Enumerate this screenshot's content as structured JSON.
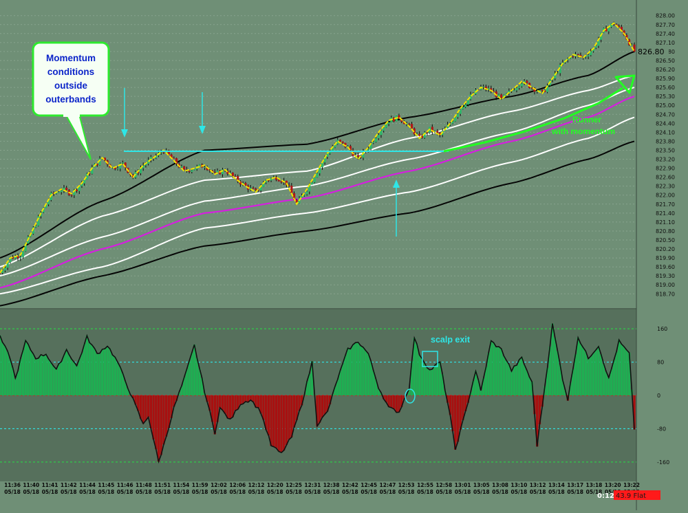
{
  "colors": {
    "background": "#6f8f76",
    "osc_background": "#56705c",
    "gridline": "#88a48e",
    "candle_up": "#2db86a",
    "candle_down": "#b01818",
    "ma_yellow": "#f3e500",
    "band_white": "#ffffff",
    "band_magenta": "#d61ee0",
    "band_black": "#050505",
    "annotation_cyan": "#2ee6e6",
    "annotation_green": "#22ff22",
    "callout_text": "#0b24c9",
    "osc_positive": "#1fae52",
    "osc_negative": "#a81010",
    "status_red": "#ff1a1a"
  },
  "annotations": {
    "callout": [
      "Momentum",
      "conditions",
      "outside",
      "outerbands"
    ],
    "runner": [
      "Runner",
      "with momentum"
    ],
    "scalp_exit": "scalp exit"
  },
  "status": {
    "timer": "0:12",
    "position": "43.9 Flat"
  },
  "chart_data": [
    {
      "type": "candlestick",
      "title": "",
      "current_price": "826.80",
      "y_ticks": [
        "828.00",
        "827.70",
        "827.40",
        "827.10",
        "826.80",
        "826.50",
        "826.20",
        "825.90",
        "825.60",
        "825.30",
        "825.00",
        "824.70",
        "824.40",
        "824.10",
        "823.80",
        "823.50",
        "823.20",
        "822.90",
        "822.60",
        "822.30",
        "822.00",
        "821.70",
        "821.40",
        "821.10",
        "820.80",
        "820.50",
        "820.20",
        "819.90",
        "819.60",
        "819.30",
        "819.00",
        "818.70"
      ],
      "ylim": [
        818.5,
        828.2
      ],
      "grid": "horizontal dotted",
      "x_ticks": [
        "11:36",
        "11:40",
        "11:41",
        "11:42",
        "11:44",
        "11:45",
        "11:46",
        "11:48",
        "11:51",
        "11:54",
        "11:59",
        "12:02",
        "12:06",
        "12:12",
        "12:20",
        "12:25",
        "12:31",
        "12:38",
        "12:42",
        "12:45",
        "12:47",
        "12:53",
        "12:55",
        "12:58",
        "13:01",
        "13:05",
        "13:08",
        "13:10",
        "13:12",
        "13:14",
        "13:17",
        "13:18",
        "13:20",
        "13:22"
      ],
      "x_dates": "05/18",
      "price_path": [
        {
          "t": 0,
          "p": 819.4
        },
        {
          "t": 2,
          "p": 819.9
        },
        {
          "t": 4,
          "p": 820.0
        },
        {
          "t": 6,
          "p": 820.7
        },
        {
          "t": 8,
          "p": 821.4
        },
        {
          "t": 10,
          "p": 822.0
        },
        {
          "t": 12,
          "p": 822.2
        },
        {
          "t": 14,
          "p": 822.05
        },
        {
          "t": 16,
          "p": 822.4
        },
        {
          "t": 18,
          "p": 822.9
        },
        {
          "t": 20,
          "p": 823.25
        },
        {
          "t": 22,
          "p": 822.9
        },
        {
          "t": 24,
          "p": 823.05
        },
        {
          "t": 26,
          "p": 822.6
        },
        {
          "t": 28,
          "p": 823.0
        },
        {
          "t": 30,
          "p": 823.25
        },
        {
          "t": 32,
          "p": 823.5
        },
        {
          "t": 34,
          "p": 823.15
        },
        {
          "t": 36,
          "p": 822.8
        },
        {
          "t": 38,
          "p": 822.9
        },
        {
          "t": 40,
          "p": 823.0
        },
        {
          "t": 42,
          "p": 822.7
        },
        {
          "t": 44,
          "p": 822.85
        },
        {
          "t": 46,
          "p": 822.55
        },
        {
          "t": 48,
          "p": 822.3
        },
        {
          "t": 50,
          "p": 822.1
        },
        {
          "t": 52,
          "p": 822.5
        },
        {
          "t": 54,
          "p": 822.6
        },
        {
          "t": 56,
          "p": 822.4
        },
        {
          "t": 58,
          "p": 821.7
        },
        {
          "t": 60,
          "p": 822.2
        },
        {
          "t": 62,
          "p": 822.8
        },
        {
          "t": 64,
          "p": 823.4
        },
        {
          "t": 66,
          "p": 823.8
        },
        {
          "t": 68,
          "p": 823.6
        },
        {
          "t": 70,
          "p": 823.2
        },
        {
          "t": 72,
          "p": 823.6
        },
        {
          "t": 74,
          "p": 824.1
        },
        {
          "t": 76,
          "p": 824.5
        },
        {
          "t": 78,
          "p": 824.6
        },
        {
          "t": 80,
          "p": 824.3
        },
        {
          "t": 82,
          "p": 823.9
        },
        {
          "t": 84,
          "p": 824.2
        },
        {
          "t": 86,
          "p": 824.0
        },
        {
          "t": 88,
          "p": 824.4
        },
        {
          "t": 90,
          "p": 824.9
        },
        {
          "t": 92,
          "p": 825.3
        },
        {
          "t": 94,
          "p": 825.6
        },
        {
          "t": 96,
          "p": 825.5
        },
        {
          "t": 98,
          "p": 825.2
        },
        {
          "t": 100,
          "p": 825.5
        },
        {
          "t": 102,
          "p": 825.8
        },
        {
          "t": 104,
          "p": 825.6
        },
        {
          "t": 106,
          "p": 825.4
        },
        {
          "t": 108,
          "p": 825.9
        },
        {
          "t": 110,
          "p": 826.4
        },
        {
          "t": 112,
          "p": 826.7
        },
        {
          "t": 114,
          "p": 826.6
        },
        {
          "t": 116,
          "p": 826.9
        },
        {
          "t": 118,
          "p": 827.5
        },
        {
          "t": 120,
          "p": 827.75
        },
        {
          "t": 122,
          "p": 827.4
        },
        {
          "t": 124,
          "p": 826.8
        }
      ],
      "moving_averages": [
        {
          "color": "black",
          "points": [
            [
              0,
              819.9
            ],
            [
              20,
              821.8
            ],
            [
              40,
              823.5
            ],
            [
              60,
              823.7
            ],
            [
              80,
              824.6
            ],
            [
              100,
              825.3
            ],
            [
              115,
              826.0
            ],
            [
              124,
              826.8
            ]
          ]
        },
        {
          "color": "white",
          "points": [
            [
              0,
              819.6
            ],
            [
              20,
              821.3
            ],
            [
              40,
              822.5
            ],
            [
              60,
              822.8
            ],
            [
              80,
              823.9
            ],
            [
              100,
              824.8
            ],
            [
              115,
              825.5
            ],
            [
              124,
              826.0
            ]
          ]
        },
        {
          "color": "white",
          "points": [
            [
              0,
              819.3
            ],
            [
              20,
              820.6
            ],
            [
              40,
              821.8
            ],
            [
              60,
              822.3
            ],
            [
              80,
              823.2
            ],
            [
              100,
              824.1
            ],
            [
              115,
              825.0
            ],
            [
              124,
              825.6
            ]
          ]
        },
        {
          "color": "magenta",
          "points": [
            [
              0,
              818.9
            ],
            [
              20,
              820.2
            ],
            [
              40,
              821.4
            ],
            [
              60,
              821.9
            ],
            [
              80,
              822.8
            ],
            [
              100,
              823.8
            ],
            [
              115,
              824.6
            ],
            [
              124,
              825.3
            ]
          ]
        },
        {
          "color": "white",
          "points": [
            [
              0,
              818.7
            ],
            [
              20,
              819.6
            ],
            [
              40,
              820.9
            ],
            [
              60,
              821.4
            ],
            [
              80,
              822.1
            ],
            [
              100,
              823.1
            ],
            [
              115,
              823.9
            ],
            [
              124,
              824.6
            ]
          ]
        },
        {
          "color": "black",
          "points": [
            [
              0,
              818.3
            ],
            [
              20,
              819.3
            ],
            [
              40,
              820.3
            ],
            [
              60,
              820.8
            ],
            [
              80,
              821.4
            ],
            [
              100,
              822.4
            ],
            [
              115,
              823.2
            ],
            [
              124,
              823.8
            ]
          ]
        }
      ]
    },
    {
      "type": "area",
      "title": "",
      "y_ticks": [
        "160",
        "80",
        "0",
        "-80",
        "-160"
      ],
      "ylim": [
        -190,
        190
      ],
      "reference_lines": [
        160,
        80,
        0,
        -80,
        -160
      ],
      "values": [
        {
          "t": 0,
          "v": 140
        },
        {
          "t": 2,
          "v": 90
        },
        {
          "t": 3,
          "v": 40
        },
        {
          "t": 5,
          "v": 130
        },
        {
          "t": 7,
          "v": 90
        },
        {
          "t": 9,
          "v": 100
        },
        {
          "t": 11,
          "v": 60
        },
        {
          "t": 13,
          "v": 110
        },
        {
          "t": 15,
          "v": 70
        },
        {
          "t": 17,
          "v": 140
        },
        {
          "t": 19,
          "v": 100
        },
        {
          "t": 21,
          "v": 120
        },
        {
          "t": 23,
          "v": 80
        },
        {
          "t": 26,
          "v": -10
        },
        {
          "t": 28,
          "v": -70
        },
        {
          "t": 29,
          "v": -50
        },
        {
          "t": 31,
          "v": -160
        },
        {
          "t": 32,
          "v": -120
        },
        {
          "t": 34,
          "v": -30
        },
        {
          "t": 36,
          "v": 40
        },
        {
          "t": 38,
          "v": 120
        },
        {
          "t": 40,
          "v": 10
        },
        {
          "t": 42,
          "v": -90
        },
        {
          "t": 43,
          "v": -30
        },
        {
          "t": 45,
          "v": -60
        },
        {
          "t": 47,
          "v": -20
        },
        {
          "t": 49,
          "v": -10
        },
        {
          "t": 51,
          "v": -40
        },
        {
          "t": 53,
          "v": -120
        },
        {
          "t": 55,
          "v": -140
        },
        {
          "t": 57,
          "v": -100
        },
        {
          "t": 59,
          "v": -20
        },
        {
          "t": 61,
          "v": 80
        },
        {
          "t": 62,
          "v": -70
        },
        {
          "t": 64,
          "v": -40
        },
        {
          "t": 66,
          "v": 40
        },
        {
          "t": 68,
          "v": 110
        },
        {
          "t": 70,
          "v": 130
        },
        {
          "t": 72,
          "v": 100
        },
        {
          "t": 74,
          "v": 20
        },
        {
          "t": 76,
          "v": -30
        },
        {
          "t": 78,
          "v": -40
        },
        {
          "t": 80,
          "v": 20
        },
        {
          "t": 81,
          "v": 140
        },
        {
          "t": 82,
          "v": 100
        },
        {
          "t": 84,
          "v": 60
        },
        {
          "t": 86,
          "v": 80
        },
        {
          "t": 88,
          "v": -50
        },
        {
          "t": 89,
          "v": -130
        },
        {
          "t": 91,
          "v": -40
        },
        {
          "t": 93,
          "v": 60
        },
        {
          "t": 94,
          "v": 10
        },
        {
          "t": 96,
          "v": 130
        },
        {
          "t": 98,
          "v": 110
        },
        {
          "t": 100,
          "v": 60
        },
        {
          "t": 102,
          "v": 90
        },
        {
          "t": 104,
          "v": 30
        },
        {
          "t": 105,
          "v": -120
        },
        {
          "t": 107,
          "v": 70
        },
        {
          "t": 108,
          "v": 170
        },
        {
          "t": 110,
          "v": 40
        },
        {
          "t": 111,
          "v": -10
        },
        {
          "t": 113,
          "v": 140
        },
        {
          "t": 115,
          "v": 90
        },
        {
          "t": 117,
          "v": 120
        },
        {
          "t": 119,
          "v": 40
        },
        {
          "t": 121,
          "v": 130
        },
        {
          "t": 123,
          "v": 100
        },
        {
          "t": 124,
          "v": -80
        }
      ]
    }
  ]
}
